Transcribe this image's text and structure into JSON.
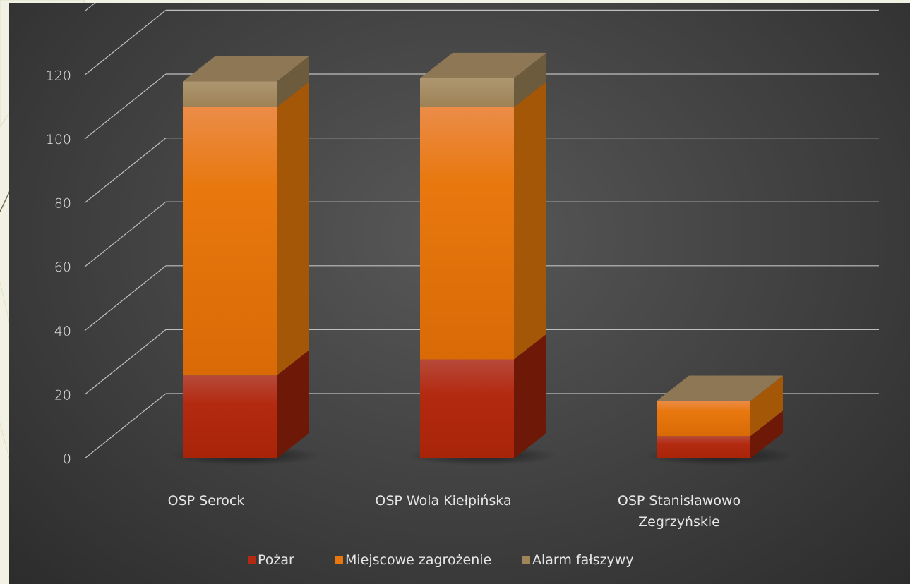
{
  "chart_data": {
    "type": "bar",
    "stacked": true,
    "style3d": true,
    "categories": [
      [
        "OSP Serock"
      ],
      [
        "OSP Wola Kiełpińska"
      ],
      [
        "OSP Stanisławowo",
        "Zegrzyńskie"
      ]
    ],
    "series": [
      {
        "name": "Pożar",
        "values": [
          26,
          31,
          7
        ],
        "color": "#b32a10"
      },
      {
        "name": "Miejscowe zagrożenie",
        "values": [
          84,
          79,
          11
        ],
        "color": "#e8780e"
      },
      {
        "name": "Alarm fałszywy",
        "values": [
          8,
          9,
          0
        ],
        "color": "#a08558"
      }
    ],
    "y_ticks": [
      "0",
      "20",
      "40",
      "60",
      "80",
      "100",
      "120"
    ],
    "ylim": [
      0,
      140
    ],
    "grid": true,
    "legend_position": "bottom",
    "background_color": "#404040",
    "gridline_color": "#bfbfbf",
    "text_color": "#e6e6e6"
  }
}
